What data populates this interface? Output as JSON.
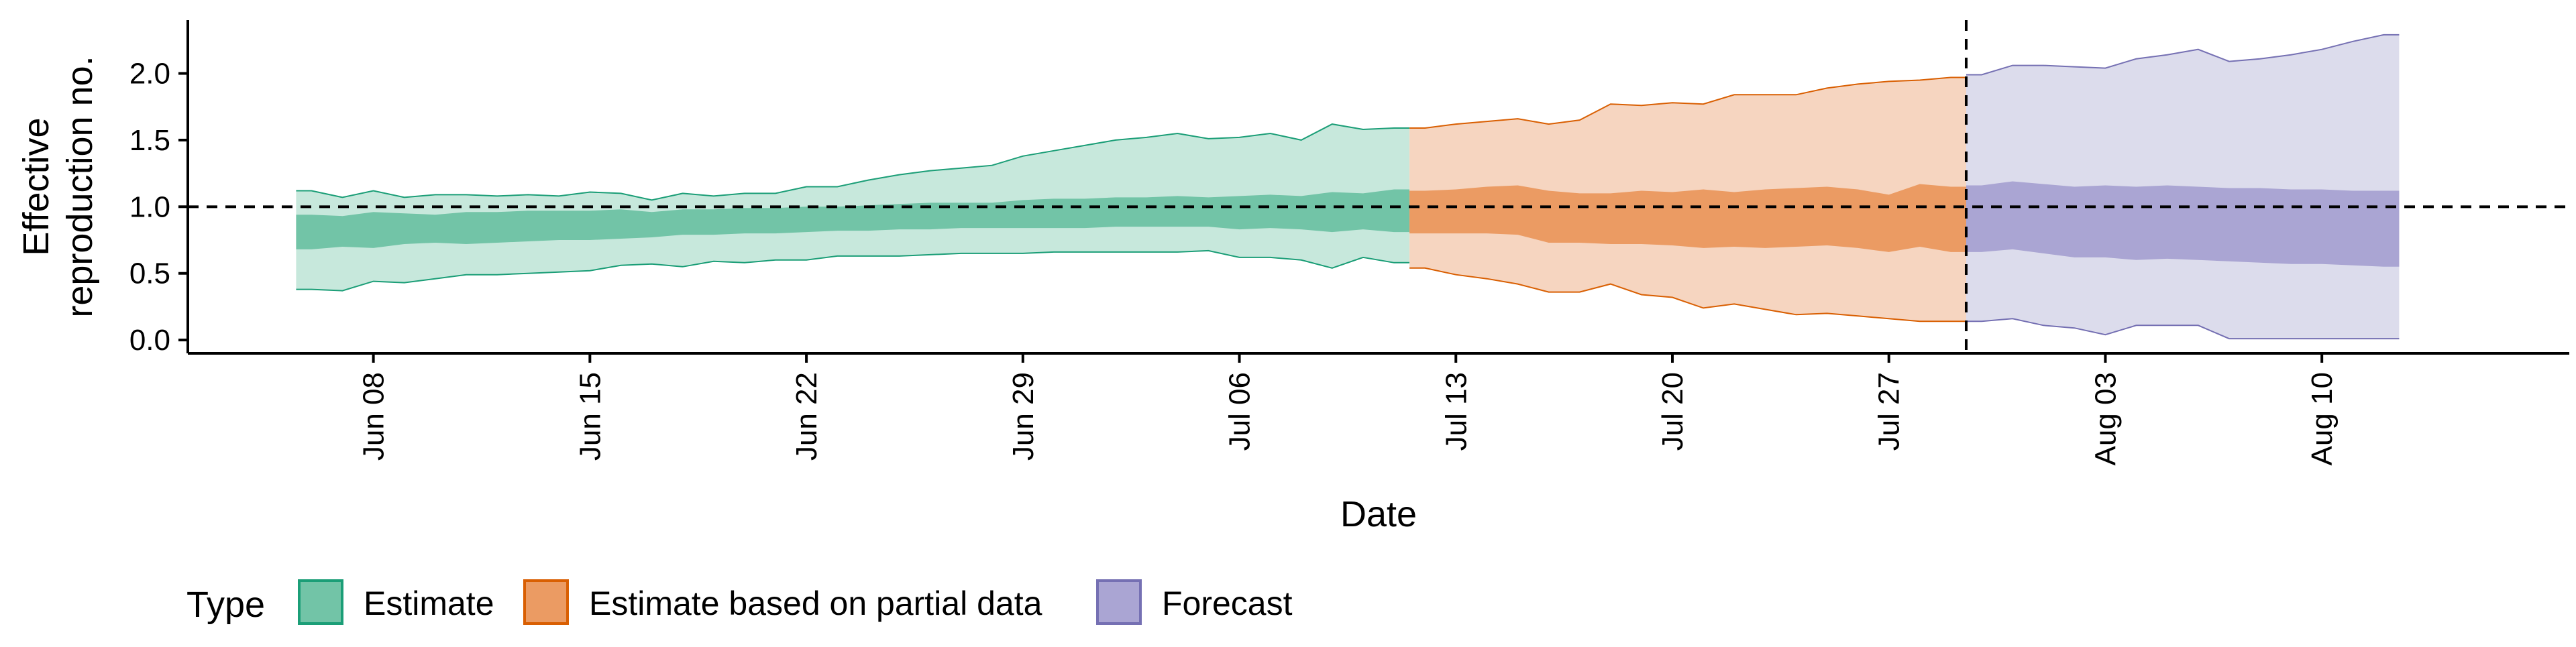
{
  "chart_data": {
    "type": "area",
    "xlabel": "Date",
    "ylabel_lines": [
      "Effective",
      "reproduction no."
    ],
    "ylim": [
      -0.1,
      2.4
    ],
    "xlim": [
      "2020-06-02",
      "2020-08-18"
    ],
    "y_ticks": [
      0.0,
      0.5,
      1.0,
      1.5,
      2.0
    ],
    "y_tick_labels": [
      "0.0",
      "0.5",
      "1.0",
      "1.5",
      "2.0"
    ],
    "x_ticks": [
      "2020-06-08",
      "2020-06-15",
      "2020-06-22",
      "2020-06-29",
      "2020-07-06",
      "2020-07-13",
      "2020-07-20",
      "2020-07-27",
      "2020-08-03",
      "2020-08-10"
    ],
    "x_tick_labels": [
      "Jun 08",
      "Jun 15",
      "Jun 22",
      "Jun 29",
      "Jul 06",
      "Jul 13",
      "Jul 20",
      "Jul 27",
      "Aug 03",
      "Aug 10"
    ],
    "reference_line_y": 1.0,
    "forecast_date_line": "2020-07-29",
    "grid": false,
    "legend": {
      "title": "Type",
      "position": "bottom",
      "items": [
        "Estimate",
        "Estimate based on partial data",
        "Forecast"
      ]
    },
    "series": [
      {
        "name": "Estimate",
        "color_light": "#c7e8dc",
        "color_dark": "#72c4a7",
        "outline": "#1b9e77",
        "x": [
          "2020-06-06",
          "2020-06-07",
          "2020-06-08",
          "2020-06-09",
          "2020-06-10",
          "2020-06-11",
          "2020-06-12",
          "2020-06-13",
          "2020-06-14",
          "2020-06-15",
          "2020-06-16",
          "2020-06-17",
          "2020-06-18",
          "2020-06-19",
          "2020-06-20",
          "2020-06-21",
          "2020-06-22",
          "2020-06-23",
          "2020-06-24",
          "2020-06-25",
          "2020-06-26",
          "2020-06-27",
          "2020-06-28",
          "2020-06-29",
          "2020-06-30",
          "2020-07-01",
          "2020-07-02",
          "2020-07-03",
          "2020-07-04",
          "2020-07-05",
          "2020-07-06",
          "2020-07-07",
          "2020-07-08",
          "2020-07-09",
          "2020-07-10",
          "2020-07-11"
        ],
        "lower90": [
          0.38,
          0.37,
          0.44,
          0.43,
          0.46,
          0.49,
          0.49,
          0.5,
          0.51,
          0.52,
          0.56,
          0.57,
          0.55,
          0.59,
          0.58,
          0.6,
          0.6,
          0.63,
          0.63,
          0.63,
          0.64,
          0.65,
          0.65,
          0.65,
          0.66,
          0.66,
          0.66,
          0.66,
          0.66,
          0.67,
          0.62,
          0.62,
          0.6,
          0.54,
          0.62,
          0.58
        ],
        "upper90": [
          1.12,
          1.07,
          1.12,
          1.07,
          1.09,
          1.09,
          1.08,
          1.09,
          1.08,
          1.11,
          1.1,
          1.05,
          1.1,
          1.08,
          1.1,
          1.1,
          1.15,
          1.15,
          1.2,
          1.24,
          1.27,
          1.29,
          1.31,
          1.38,
          1.42,
          1.46,
          1.5,
          1.52,
          1.55,
          1.51,
          1.52,
          1.55,
          1.5,
          1.62,
          1.58,
          1.59
        ],
        "lower50": [
          0.68,
          0.7,
          0.69,
          0.72,
          0.73,
          0.72,
          0.73,
          0.74,
          0.75,
          0.75,
          0.76,
          0.77,
          0.79,
          0.79,
          0.8,
          0.8,
          0.81,
          0.82,
          0.82,
          0.83,
          0.83,
          0.84,
          0.84,
          0.84,
          0.84,
          0.84,
          0.85,
          0.85,
          0.85,
          0.85,
          0.83,
          0.84,
          0.83,
          0.81,
          0.83,
          0.81
        ],
        "upper50": [
          0.94,
          0.93,
          0.96,
          0.95,
          0.94,
          0.96,
          0.96,
          0.97,
          0.97,
          0.97,
          0.98,
          0.96,
          0.98,
          0.98,
          0.99,
          0.99,
          1.0,
          1.0,
          1.01,
          1.02,
          1.03,
          1.03,
          1.03,
          1.05,
          1.06,
          1.06,
          1.07,
          1.07,
          1.08,
          1.07,
          1.08,
          1.09,
          1.08,
          1.11,
          1.1,
          1.13
        ]
      },
      {
        "name": "Estimate based on partial data",
        "color_light": "#f6d5c0",
        "color_dark": "#eb9b63",
        "outline": "#d95f02",
        "x": [
          "2020-07-12",
          "2020-07-13",
          "2020-07-14",
          "2020-07-15",
          "2020-07-16",
          "2020-07-17",
          "2020-07-18",
          "2020-07-19",
          "2020-07-20",
          "2020-07-21",
          "2020-07-22",
          "2020-07-23",
          "2020-07-24",
          "2020-07-25",
          "2020-07-26",
          "2020-07-27",
          "2020-07-28",
          "2020-07-29"
        ],
        "lower90": [
          0.54,
          0.49,
          0.46,
          0.42,
          0.36,
          0.36,
          0.42,
          0.34,
          0.32,
          0.24,
          0.27,
          0.23,
          0.19,
          0.2,
          0.18,
          0.16,
          0.14,
          0.14
        ],
        "upper90": [
          1.59,
          1.62,
          1.64,
          1.66,
          1.62,
          1.65,
          1.77,
          1.76,
          1.78,
          1.77,
          1.84,
          1.84,
          1.84,
          1.89,
          1.92,
          1.94,
          1.95,
          1.97
        ],
        "lower50": [
          0.8,
          0.8,
          0.8,
          0.79,
          0.73,
          0.73,
          0.72,
          0.72,
          0.71,
          0.69,
          0.7,
          0.69,
          0.7,
          0.71,
          0.69,
          0.66,
          0.7,
          0.66
        ],
        "upper50": [
          1.12,
          1.13,
          1.15,
          1.16,
          1.12,
          1.1,
          1.1,
          1.12,
          1.11,
          1.13,
          1.11,
          1.13,
          1.14,
          1.15,
          1.13,
          1.09,
          1.17,
          1.15
        ]
      },
      {
        "name": "Forecast",
        "color_light": "#dcdcec",
        "color_dark": "#aaa5d3",
        "outline": "#7570b3",
        "x": [
          "2020-07-30",
          "2020-07-31",
          "2020-08-01",
          "2020-08-02",
          "2020-08-03",
          "2020-08-04",
          "2020-08-05",
          "2020-08-06",
          "2020-08-07",
          "2020-08-08",
          "2020-08-09",
          "2020-08-10",
          "2020-08-11",
          "2020-08-12"
        ],
        "lower90": [
          0.14,
          0.16,
          0.11,
          0.09,
          0.04,
          0.11,
          0.11,
          0.11,
          0.01,
          0.01,
          0.01,
          0.01,
          0.01,
          0.01
        ],
        "upper90": [
          1.99,
          2.06,
          2.06,
          2.05,
          2.04,
          2.11,
          2.14,
          2.18,
          2.09,
          2.11,
          2.14,
          2.18,
          2.24,
          2.29
        ],
        "lower50": [
          0.66,
          0.68,
          0.65,
          0.62,
          0.62,
          0.6,
          0.61,
          0.6,
          0.59,
          0.58,
          0.57,
          0.57,
          0.56,
          0.55
        ],
        "upper50": [
          1.16,
          1.19,
          1.17,
          1.15,
          1.16,
          1.15,
          1.16,
          1.15,
          1.14,
          1.14,
          1.13,
          1.13,
          1.12,
          1.12
        ]
      }
    ]
  }
}
